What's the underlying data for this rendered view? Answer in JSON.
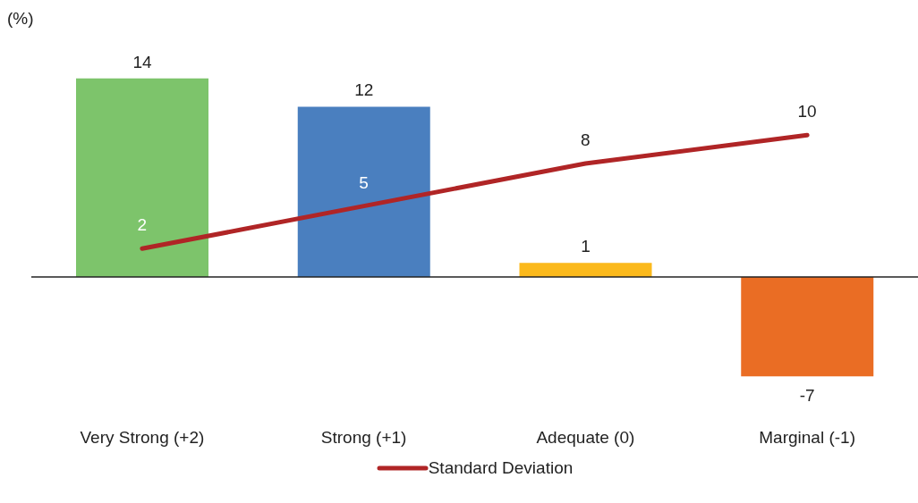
{
  "chart_data": {
    "type": "bar",
    "ylabel": "(%)",
    "categories": [
      "Very Strong (+2)",
      "Strong (+1)",
      "Adequate (0)",
      "Marginal (-1)"
    ],
    "data_labels": true,
    "legend": "bottom",
    "tick_labels": "x",
    "series": [
      {
        "values": [
          14,
          12,
          1,
          -7
        ],
        "colors": [
          "#7dc46b",
          "#4a7fbf",
          "#fbb91c",
          "#ea6d24"
        ]
      },
      {
        "type": "line",
        "name": "Standard Deviation",
        "color": "#b02526",
        "values": [
          2,
          5,
          8,
          10
        ],
        "marker": "none"
      }
    ]
  }
}
